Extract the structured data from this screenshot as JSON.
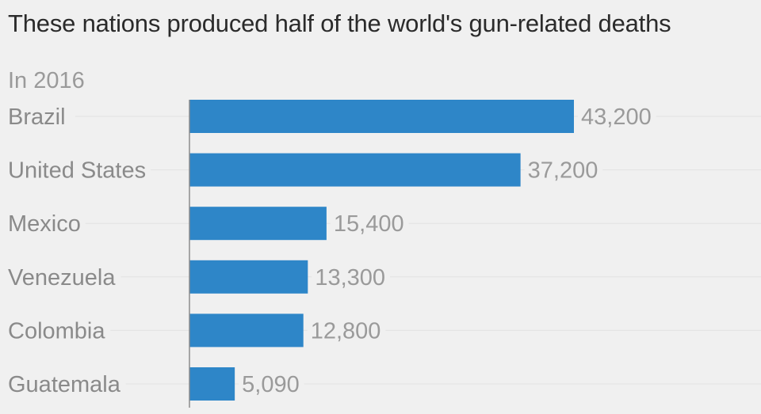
{
  "chart_data": {
    "type": "bar",
    "orientation": "horizontal",
    "title": "These nations produced half of the world's gun-related deaths",
    "subtitle": "In 2016",
    "categories": [
      "Brazil",
      "United States",
      "Mexico",
      "Venezuela",
      "Colombia",
      "Guatemala"
    ],
    "values": [
      43200,
      37200,
      15400,
      13300,
      12800,
      5090
    ],
    "value_labels": [
      "43,200",
      "37,200",
      "15,400",
      "13,300",
      "12,800",
      "5,090"
    ],
    "xlabel": "",
    "ylabel": "",
    "xlim": [
      0,
      45000
    ],
    "grid": true,
    "legend": "none",
    "bar_color": "#2e86c8"
  }
}
